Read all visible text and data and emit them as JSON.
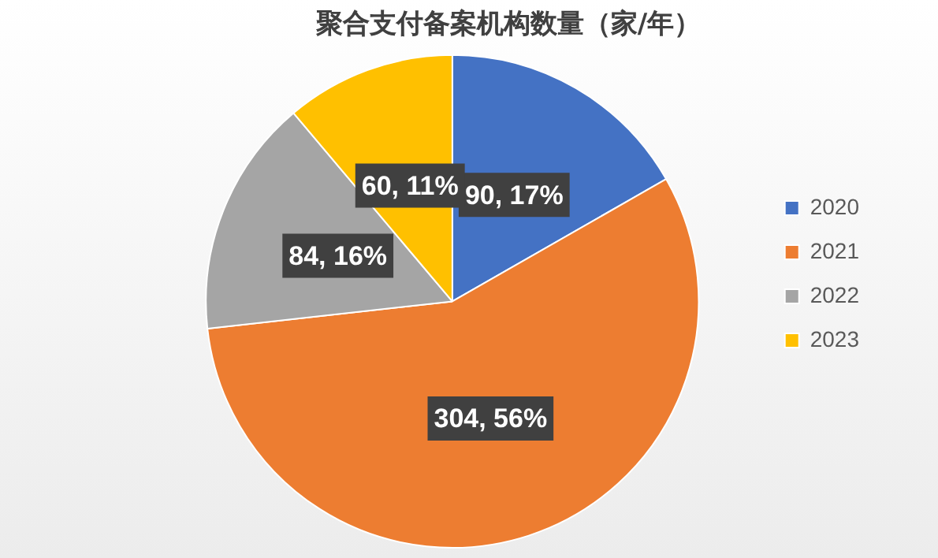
{
  "chart_data": {
    "type": "pie",
    "title": "聚合支付备案机构数量（家/年）",
    "categories": [
      "2020",
      "2021",
      "2022",
      "2023"
    ],
    "values": [
      90,
      304,
      84,
      60
    ],
    "colors": [
      "#4472c4",
      "#ed7d31",
      "#a5a5a5",
      "#ffc000"
    ],
    "value_labels": [
      "90, 17%",
      "304, 56%",
      "84, 16%",
      "60, 11%"
    ],
    "legend": "right"
  }
}
